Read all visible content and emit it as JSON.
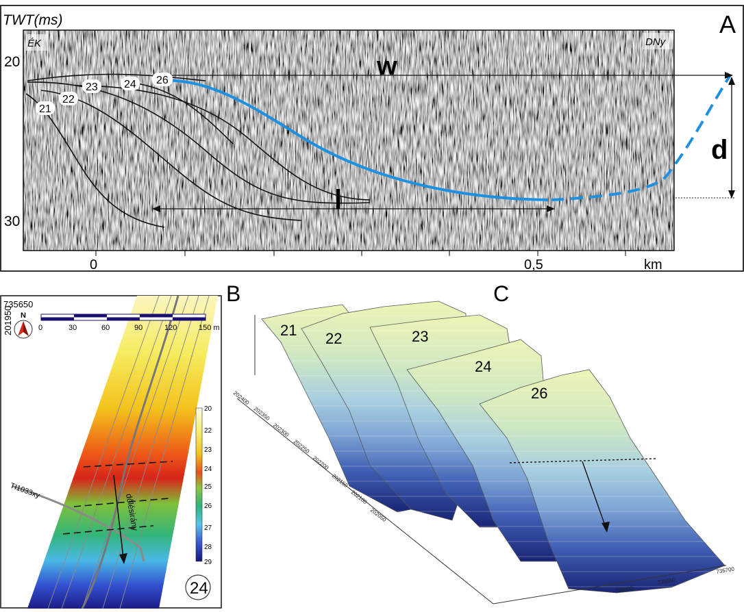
{
  "panelA": {
    "letter": "A",
    "y_axis_title": "TWT(ms)",
    "y_ticks": [
      "20",
      "30"
    ],
    "x_ticks": [
      "0",
      "0,5",
      "km"
    ],
    "corner_left": "ÉK",
    "corner_right": "DNy",
    "w_label": "w",
    "l_label": "l",
    "d_label": "d",
    "horizon_labels": [
      "21",
      "22",
      "23",
      "24",
      "26"
    ],
    "accent_color": "#1e90e0"
  },
  "panelB": {
    "letter": "B",
    "coord_easting": "735650",
    "coord_northing": "201950",
    "north_label": "N",
    "scale_ticks": [
      "0",
      "30",
      "60",
      "90",
      "120",
      "150 m"
    ],
    "profile_label": "TI1033xy",
    "arrow_label": "dőlésirány",
    "colorbar_ticks": [
      "20",
      "22",
      "23",
      "24",
      "25",
      "26",
      "27",
      "28",
      "29"
    ],
    "surface_id": "24"
  },
  "panelC": {
    "letter": "C",
    "surface_labels": [
      "21",
      "22",
      "23",
      "24",
      "26"
    ],
    "y_axis_ticks": [
      "202400",
      "202350",
      "202300",
      "202250",
      "202200",
      "202150",
      "202100",
      "202050"
    ],
    "x_axis_ticks": [
      "735600",
      "735650",
      "735700"
    ]
  }
}
